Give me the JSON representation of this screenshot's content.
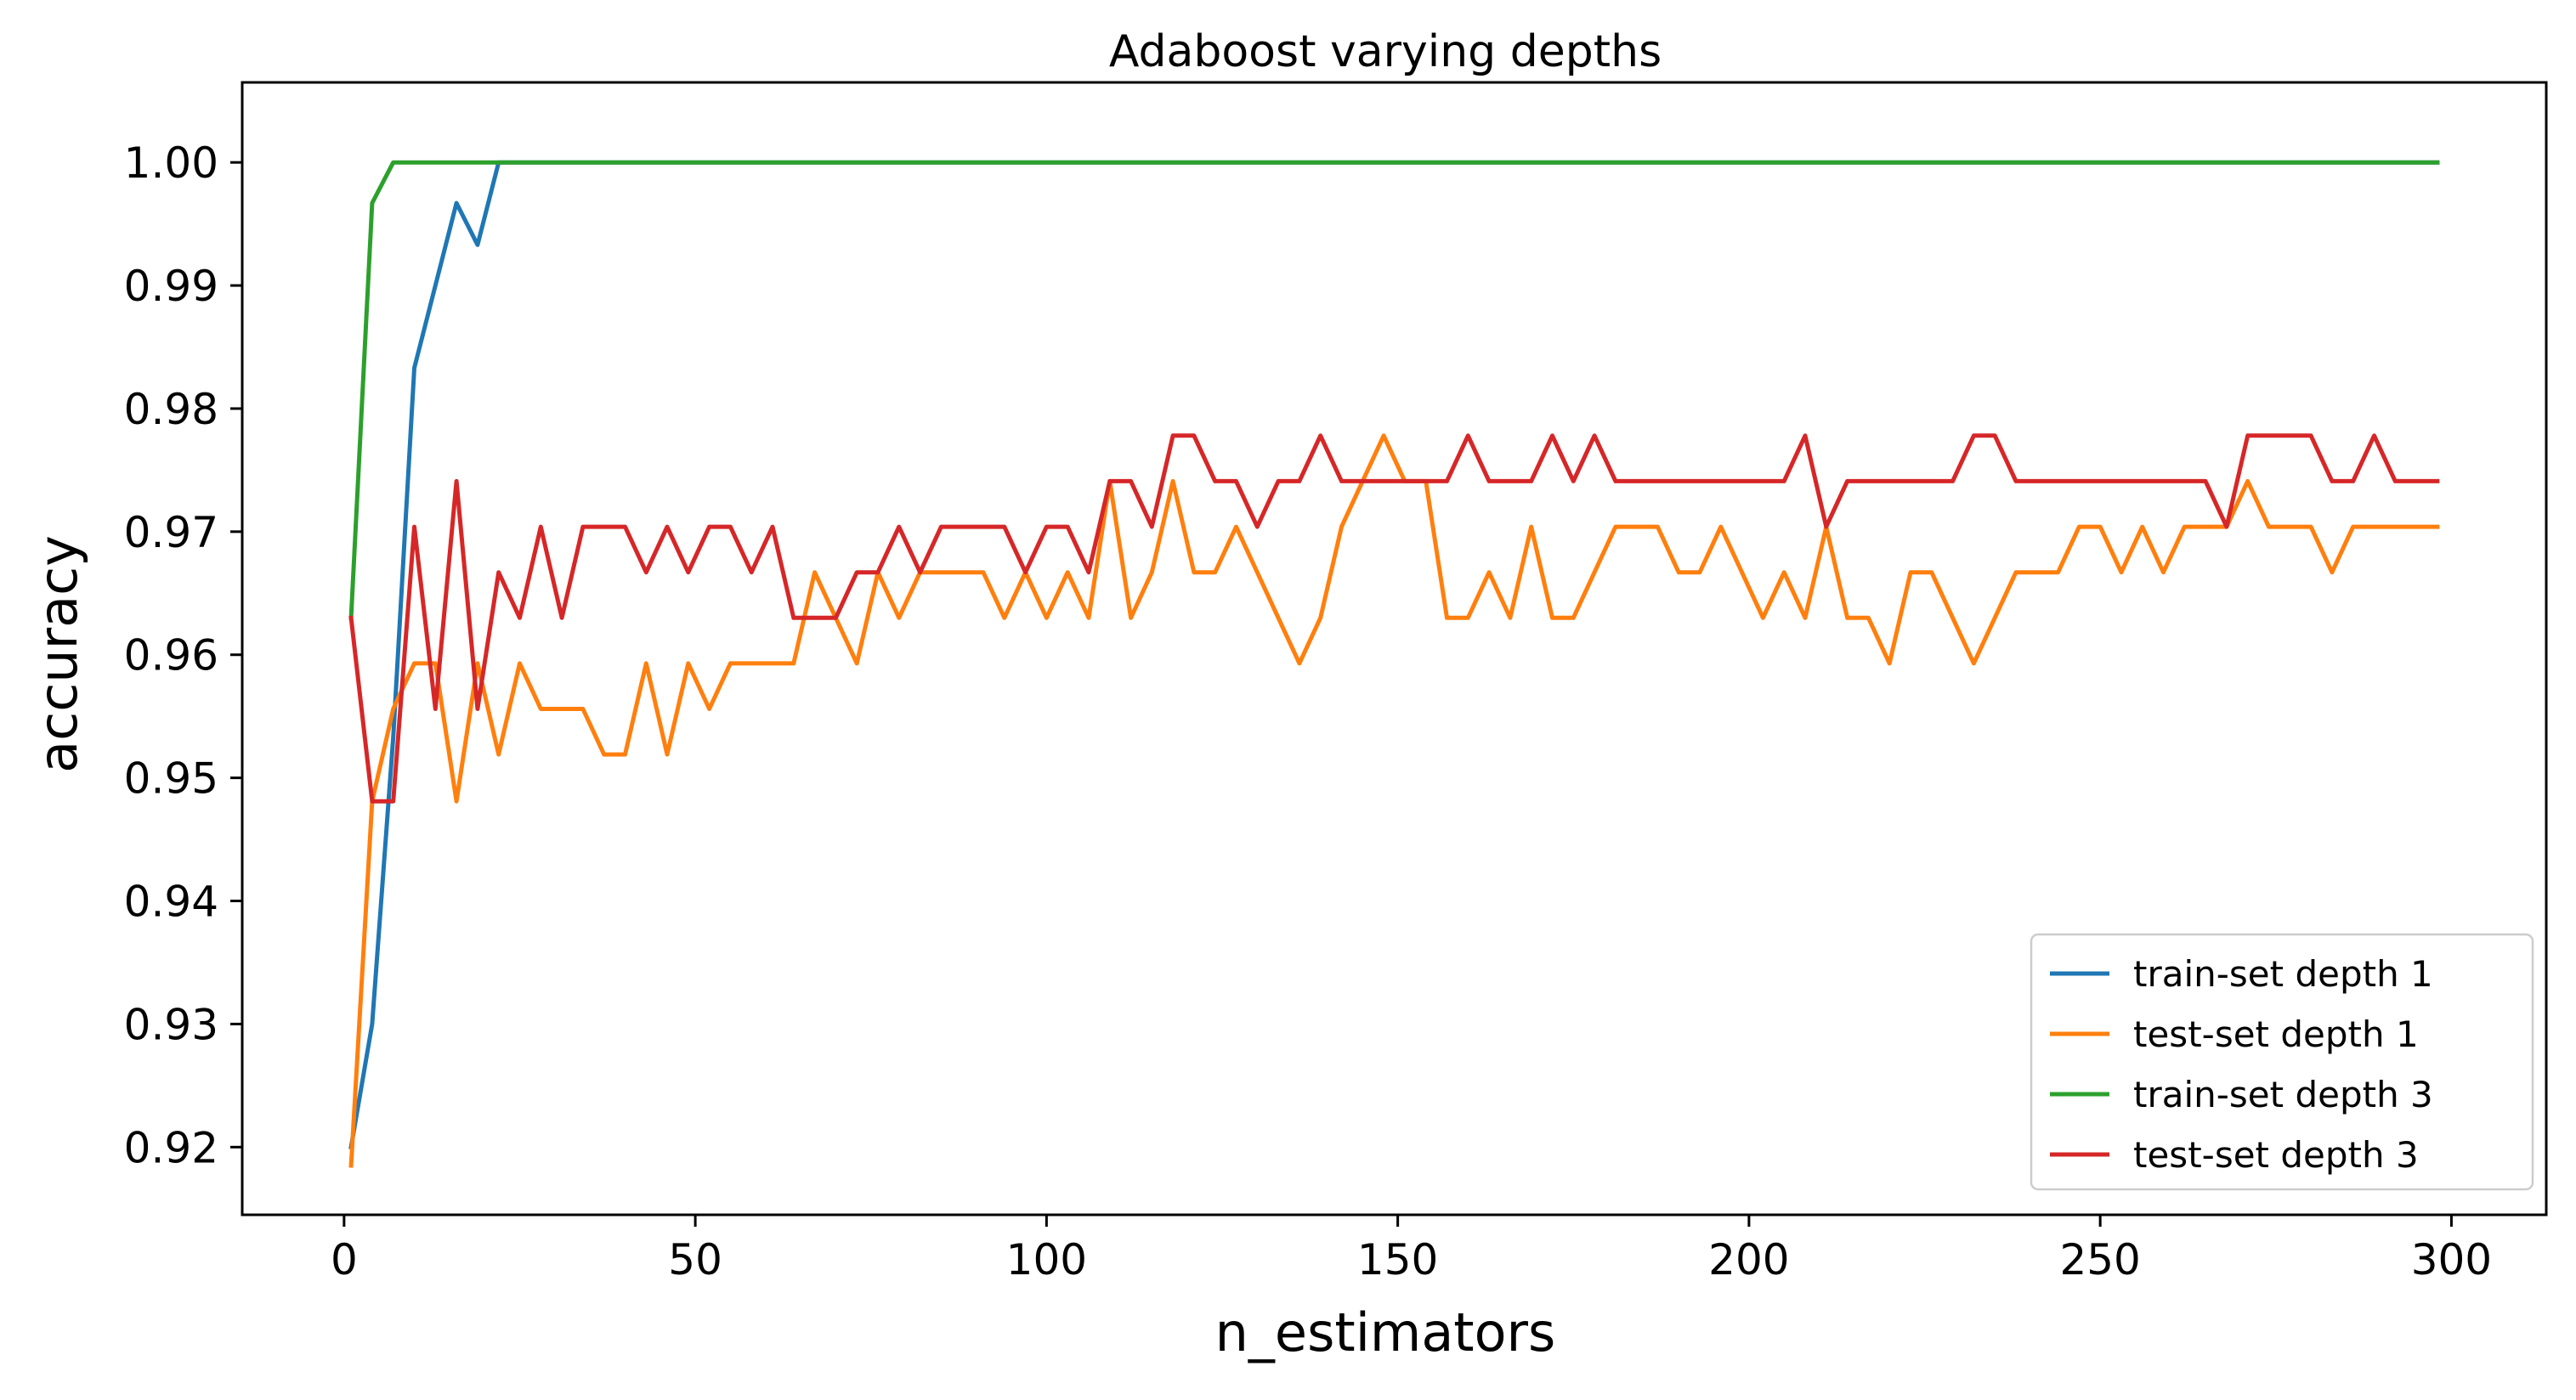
{
  "chart_data": {
    "type": "line",
    "title": "Adaboost varying depths",
    "xlabel": "n_estimators",
    "ylabel": "accuracy",
    "xlim": [
      -14.5,
      313.5
    ],
    "ylim": [
      0.9145,
      1.0065
    ],
    "xticks": [
      0,
      50,
      100,
      150,
      200,
      250,
      300
    ],
    "xtick_labels": [
      "0",
      "50",
      "100",
      "150",
      "200",
      "250",
      "300"
    ],
    "yticks": [
      0.92,
      0.93,
      0.94,
      0.95,
      0.96,
      0.97,
      0.98,
      0.99,
      1.0
    ],
    "ytick_labels": [
      "0.92",
      "0.93",
      "0.94",
      "0.95",
      "0.96",
      "0.97",
      "0.98",
      "0.99",
      "1.00"
    ],
    "grid": false,
    "legend": "lower-right",
    "x": [
      1,
      4,
      7,
      10,
      13,
      16,
      19,
      22,
      25,
      28,
      31,
      34,
      37,
      40,
      43,
      46,
      49,
      52,
      55,
      58,
      61,
      64,
      67,
      70,
      73,
      76,
      79,
      82,
      85,
      88,
      91,
      94,
      97,
      100,
      103,
      106,
      109,
      112,
      115,
      118,
      121,
      124,
      127,
      130,
      133,
      136,
      139,
      142,
      145,
      148,
      151,
      154,
      157,
      160,
      163,
      166,
      169,
      172,
      175,
      178,
      181,
      184,
      187,
      190,
      193,
      196,
      199,
      202,
      205,
      208,
      211,
      214,
      217,
      220,
      223,
      226,
      229,
      232,
      235,
      238,
      241,
      244,
      247,
      250,
      253,
      256,
      259,
      262,
      265,
      268,
      271,
      274,
      277,
      280,
      283,
      286,
      289,
      292,
      295,
      298
    ],
    "series": [
      {
        "name": "train-set depth 1",
        "color": "#1f77b4",
        "values": [
          0.92,
          0.93,
          0.9533,
          0.9833,
          0.99,
          0.9967,
          0.9933,
          1.0,
          1.0,
          1.0,
          1.0,
          1.0,
          1.0,
          1.0,
          1.0,
          1.0,
          1.0,
          1.0,
          1.0,
          1.0,
          1.0,
          1.0,
          1.0,
          1.0,
          1.0,
          1.0,
          1.0,
          1.0,
          1.0,
          1.0,
          1.0,
          1.0,
          1.0,
          1.0,
          1.0,
          1.0,
          1.0,
          1.0,
          1.0,
          1.0,
          1.0,
          1.0,
          1.0,
          1.0,
          1.0,
          1.0,
          1.0,
          1.0,
          1.0,
          1.0,
          1.0,
          1.0,
          1.0,
          1.0,
          1.0,
          1.0,
          1.0,
          1.0,
          1.0,
          1.0,
          1.0,
          1.0,
          1.0,
          1.0,
          1.0,
          1.0,
          1.0,
          1.0,
          1.0,
          1.0,
          1.0,
          1.0,
          1.0,
          1.0,
          1.0,
          1.0,
          1.0,
          1.0,
          1.0,
          1.0,
          1.0,
          1.0,
          1.0,
          1.0,
          1.0,
          1.0,
          1.0,
          1.0,
          1.0,
          1.0,
          1.0,
          1.0,
          1.0,
          1.0,
          1.0,
          1.0,
          1.0,
          1.0,
          1.0,
          1.0
        ]
      },
      {
        "name": "test-set depth 1",
        "color": "#ff7f0e",
        "values": [
          0.9185,
          0.9481,
          0.9556,
          0.9593,
          0.9593,
          0.9481,
          0.9593,
          0.9519,
          0.9593,
          0.9556,
          0.9556,
          0.9556,
          0.9519,
          0.9519,
          0.9593,
          0.9519,
          0.9593,
          0.9556,
          0.9593,
          0.9593,
          0.9593,
          0.9593,
          0.9667,
          0.963,
          0.9593,
          0.9667,
          0.963,
          0.9667,
          0.9667,
          0.9667,
          0.9667,
          0.963,
          0.9667,
          0.963,
          0.9667,
          0.963,
          0.9741,
          0.963,
          0.9667,
          0.9741,
          0.9667,
          0.9667,
          0.9704,
          0.9667,
          0.963,
          0.9593,
          0.963,
          0.9704,
          0.9741,
          0.9778,
          0.9741,
          0.9741,
          0.963,
          0.963,
          0.9667,
          0.963,
          0.9704,
          0.963,
          0.963,
          0.9667,
          0.9704,
          0.9704,
          0.9704,
          0.9667,
          0.9667,
          0.9704,
          0.9667,
          0.963,
          0.9667,
          0.963,
          0.9704,
          0.963,
          0.963,
          0.9593,
          0.9667,
          0.9667,
          0.963,
          0.9593,
          0.963,
          0.9667,
          0.9667,
          0.9667,
          0.9704,
          0.9704,
          0.9667,
          0.9704,
          0.9667,
          0.9704,
          0.9704,
          0.9704,
          0.9741,
          0.9704,
          0.9704,
          0.9704,
          0.9667,
          0.9704,
          0.9704,
          0.9704,
          0.9704,
          0.9704
        ]
      },
      {
        "name": "train-set depth 3",
        "color": "#2ca02c",
        "values": [
          0.963,
          0.9967,
          1.0,
          1.0,
          1.0,
          1.0,
          1.0,
          1.0,
          1.0,
          1.0,
          1.0,
          1.0,
          1.0,
          1.0,
          1.0,
          1.0,
          1.0,
          1.0,
          1.0,
          1.0,
          1.0,
          1.0,
          1.0,
          1.0,
          1.0,
          1.0,
          1.0,
          1.0,
          1.0,
          1.0,
          1.0,
          1.0,
          1.0,
          1.0,
          1.0,
          1.0,
          1.0,
          1.0,
          1.0,
          1.0,
          1.0,
          1.0,
          1.0,
          1.0,
          1.0,
          1.0,
          1.0,
          1.0,
          1.0,
          1.0,
          1.0,
          1.0,
          1.0,
          1.0,
          1.0,
          1.0,
          1.0,
          1.0,
          1.0,
          1.0,
          1.0,
          1.0,
          1.0,
          1.0,
          1.0,
          1.0,
          1.0,
          1.0,
          1.0,
          1.0,
          1.0,
          1.0,
          1.0,
          1.0,
          1.0,
          1.0,
          1.0,
          1.0,
          1.0,
          1.0,
          1.0,
          1.0,
          1.0,
          1.0,
          1.0,
          1.0,
          1.0,
          1.0,
          1.0,
          1.0,
          1.0,
          1.0,
          1.0,
          1.0,
          1.0,
          1.0,
          1.0,
          1.0,
          1.0,
          1.0
        ]
      },
      {
        "name": "test-set depth 3",
        "color": "#d62728",
        "values": [
          0.963,
          0.9481,
          0.9481,
          0.9704,
          0.9556,
          0.9741,
          0.9556,
          0.9667,
          0.963,
          0.9704,
          0.963,
          0.9704,
          0.9704,
          0.9704,
          0.9667,
          0.9704,
          0.9667,
          0.9704,
          0.9704,
          0.9667,
          0.9704,
          0.963,
          0.963,
          0.963,
          0.9667,
          0.9667,
          0.9704,
          0.9667,
          0.9704,
          0.9704,
          0.9704,
          0.9704,
          0.9667,
          0.9704,
          0.9704,
          0.9667,
          0.9741,
          0.9741,
          0.9704,
          0.9778,
          0.9778,
          0.9741,
          0.9741,
          0.9704,
          0.9741,
          0.9741,
          0.9778,
          0.9741,
          0.9741,
          0.9741,
          0.9741,
          0.9741,
          0.9741,
          0.9778,
          0.9741,
          0.9741,
          0.9741,
          0.9778,
          0.9741,
          0.9778,
          0.9741,
          0.9741,
          0.9741,
          0.9741,
          0.9741,
          0.9741,
          0.9741,
          0.9741,
          0.9741,
          0.9778,
          0.9704,
          0.9741,
          0.9741,
          0.9741,
          0.9741,
          0.9741,
          0.9741,
          0.9778,
          0.9778,
          0.9741,
          0.9741,
          0.9741,
          0.9741,
          0.9741,
          0.9741,
          0.9741,
          0.9741,
          0.9741,
          0.9741,
          0.9704,
          0.9778,
          0.9778,
          0.9778,
          0.9778,
          0.9741,
          0.9741,
          0.9778,
          0.9741,
          0.9741,
          0.9741
        ]
      }
    ]
  }
}
